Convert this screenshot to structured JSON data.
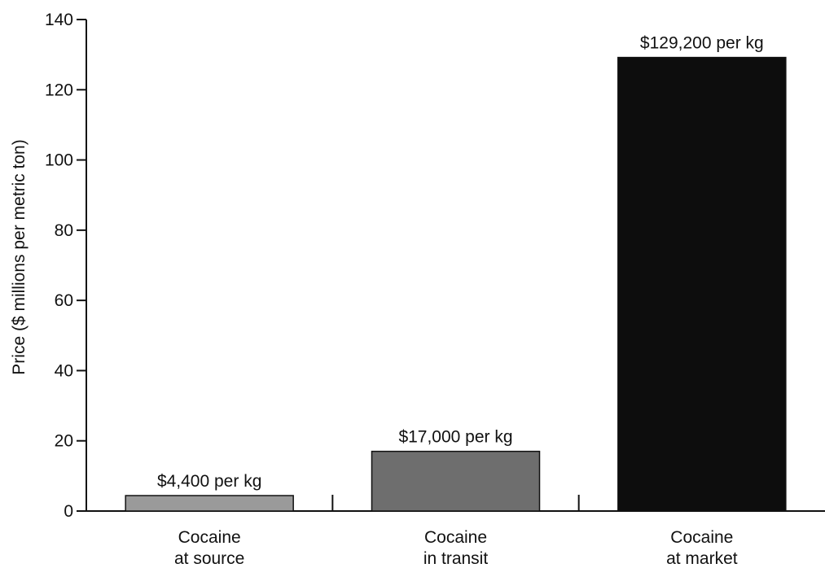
{
  "chart_data": {
    "type": "bar",
    "title": "",
    "xlabel": "",
    "ylabel": "Price ($ millions per metric ton)",
    "ylim": [
      0,
      140
    ],
    "yticks": [
      0,
      20,
      40,
      60,
      80,
      100,
      120,
      140
    ],
    "grid": false,
    "categories": [
      [
        "Cocaine",
        "at source"
      ],
      [
        "Cocaine",
        "in transit"
      ],
      [
        "Cocaine",
        "at market"
      ]
    ],
    "values": [
      4.4,
      17.0,
      129.2
    ],
    "data_labels": [
      "$4,400 per kg",
      "$17,000 per kg",
      "$129,200 per kg"
    ],
    "bar_colors": [
      "#9a9a9a",
      "#6e6e6e",
      "#0d0d0d"
    ]
  }
}
